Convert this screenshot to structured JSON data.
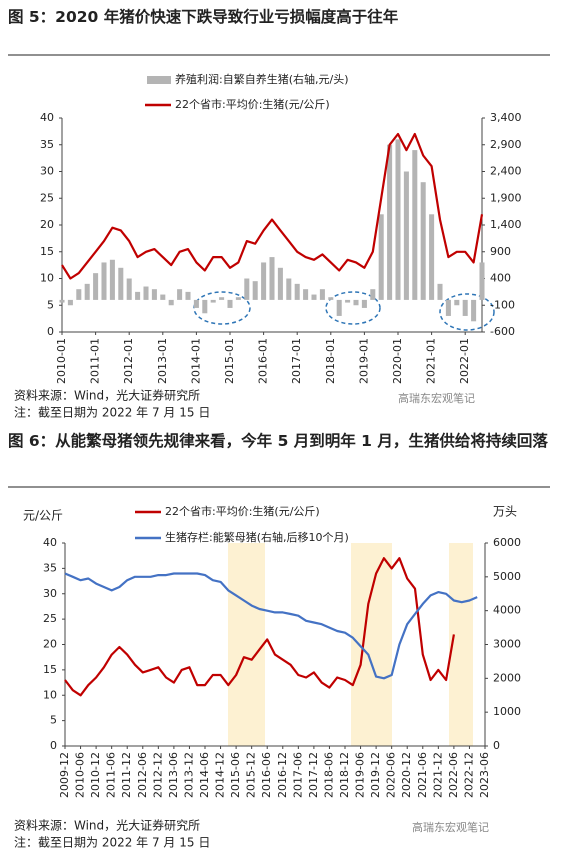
{
  "chart_data": [
    {
      "type": "combo",
      "title": "图 5：2020 年猪价快速下跌导致行业亏损幅度高于往年",
      "x": [
        "2010-01",
        "2010-04",
        "2010-07",
        "2010-10",
        "2011-01",
        "2011-04",
        "2011-07",
        "2011-10",
        "2012-01",
        "2012-04",
        "2012-07",
        "2012-10",
        "2013-01",
        "2013-04",
        "2013-07",
        "2013-10",
        "2014-01",
        "2014-04",
        "2014-07",
        "2014-10",
        "2015-01",
        "2015-04",
        "2015-07",
        "2015-10",
        "2016-01",
        "2016-04",
        "2016-07",
        "2016-10",
        "2017-01",
        "2017-04",
        "2017-07",
        "2017-10",
        "2018-01",
        "2018-04",
        "2018-07",
        "2018-10",
        "2019-01",
        "2019-04",
        "2019-07",
        "2019-10",
        "2020-01",
        "2020-04",
        "2020-07",
        "2020-10",
        "2021-01",
        "2021-04",
        "2021-07",
        "2021-10",
        "2022-01",
        "2022-04",
        "2022-07"
      ],
      "xlim": [
        "2010-01",
        "2022-07"
      ],
      "xticks": [
        "2010-01",
        "2011-01",
        "2012-01",
        "2013-01",
        "2014-01",
        "2015-01",
        "2016-01",
        "2017-01",
        "2018-01",
        "2019-01",
        "2020-01",
        "2021-01",
        "2022-01"
      ],
      "series": [
        {
          "name": "养殖利润:自繁自养生猪(右轴,元/头)",
          "type": "bar",
          "axis": "y2",
          "color": "#b4b4b4",
          "values": [
            -50,
            -100,
            200,
            300,
            500,
            700,
            750,
            600,
            400,
            150,
            250,
            200,
            100,
            -100,
            200,
            150,
            -150,
            -250,
            -50,
            50,
            -150,
            50,
            400,
            350,
            700,
            800,
            600,
            400,
            300,
            200,
            100,
            200,
            50,
            -300,
            -50,
            -100,
            -150,
            200,
            1600,
            2900,
            3000,
            2400,
            2800,
            2200,
            1600,
            300,
            -300,
            -100,
            -300,
            -400,
            700
          ]
        },
        {
          "name": "22个省市:平均价:生猪(元/公斤)",
          "type": "line",
          "color": "#c00000",
          "values": [
            12.5,
            10,
            11,
            13,
            15,
            17,
            19.5,
            19,
            17,
            14,
            15,
            15.5,
            14,
            12.5,
            15,
            15.5,
            13,
            11.5,
            14,
            14,
            12,
            13,
            17,
            16.5,
            19,
            21,
            19,
            17,
            15,
            14,
            13.5,
            14.5,
            13,
            11.5,
            13.5,
            13,
            12,
            15,
            25,
            35,
            37,
            34,
            37,
            33,
            31,
            21,
            14,
            15,
            15,
            13,
            22
          ]
        }
      ],
      "ylim": [
        0,
        40
      ],
      "yticks": [
        0,
        5,
        10,
        15,
        20,
        25,
        30,
        35,
        40
      ],
      "y2lim": [
        -600,
        3400
      ],
      "y2ticks": [
        -600,
        -100,
        400,
        900,
        {
          "value": 1400,
          "label": "1,400"
        },
        {
          "value": 1900,
          "label": "1,900"
        },
        {
          "value": 2400,
          "label": "2,400"
        },
        {
          "value": 2900,
          "label": "2,900"
        },
        {
          "value": 3400,
          "label": "3,400"
        }
      ],
      "source": "资料来源：Wind，光大证券研究所",
      "note": "注：截至日期为 2022 年 7 月 15 日"
    },
    {
      "type": "line",
      "title": "图 6：从能繁母猪领先规律来看，今年 5 月到明年 1 月，生猪供给将持续回落",
      "ylabel": "元/公斤",
      "y2label": "万头",
      "x": [
        "2009-12",
        "2010-03",
        "2010-06",
        "2010-09",
        "2010-12",
        "2011-03",
        "2011-06",
        "2011-09",
        "2011-12",
        "2012-03",
        "2012-06",
        "2012-09",
        "2012-12",
        "2013-03",
        "2013-06",
        "2013-09",
        "2013-12",
        "2014-03",
        "2014-06",
        "2014-09",
        "2014-12",
        "2015-03",
        "2015-06",
        "2015-09",
        "2015-12",
        "2016-03",
        "2016-06",
        "2016-09",
        "2016-12",
        "2017-03",
        "2017-06",
        "2017-09",
        "2017-12",
        "2018-03",
        "2018-06",
        "2018-09",
        "2018-12",
        "2019-03",
        "2019-06",
        "2019-09",
        "2019-12",
        "2020-03",
        "2020-06",
        "2020-09",
        "2020-12",
        "2021-03",
        "2021-06",
        "2021-09",
        "2021-12",
        "2022-03",
        "2022-06",
        "2022-09",
        "2022-12",
        "2023-03"
      ],
      "xlim": [
        "2009-12",
        "2023-06"
      ],
      "xticks": [
        "2009-12",
        "2010-06",
        "2010-12",
        "2011-06",
        "2011-12",
        "2012-06",
        "2012-12",
        "2013-06",
        "2013-12",
        "2014-06",
        "2014-12",
        "2015-06",
        "2015-12",
        "2016-06",
        "2016-12",
        "2017-06",
        "2017-12",
        "2018-06",
        "2018-12",
        "2019-06",
        "2019-12",
        "2020-06",
        "2020-12",
        "2021-06",
        "2021-12",
        "2022-06",
        "2022-12",
        "2023-06"
      ],
      "series": [
        {
          "name": "22个省市:平均价:生猪(元/公斤)",
          "color": "#c00000",
          "values": [
            13,
            11,
            10,
            12,
            13.5,
            15.5,
            18,
            19.5,
            18,
            16,
            14.5,
            15,
            15.5,
            13.5,
            12.5,
            15,
            15.5,
            12,
            12,
            14,
            14,
            12,
            14,
            17.5,
            17,
            19,
            21,
            18,
            17,
            16,
            14,
            13.5,
            14.5,
            12.5,
            11.5,
            13.5,
            13,
            12,
            16,
            28,
            34,
            37,
            35,
            37,
            33,
            31,
            18,
            13,
            15,
            13,
            22,
            null,
            null,
            null
          ]
        },
        {
          "name": "生猪存栏:能繁母猪(右轴,后移10个月)",
          "color": "#4472c4",
          "axis": "y2",
          "values": [
            5100,
            5000,
            4900,
            4950,
            4800,
            4700,
            4600,
            4700,
            4900,
            5000,
            5000,
            5000,
            5050,
            5050,
            5100,
            5100,
            5100,
            5100,
            5050,
            4900,
            4850,
            4600,
            4450,
            4300,
            4150,
            4050,
            4000,
            3950,
            3950,
            3900,
            3850,
            3700,
            3650,
            3600,
            3500,
            3400,
            3350,
            3200,
            2950,
            2700,
            2050,
            2000,
            2100,
            3000,
            3600,
            3900,
            4200,
            4450,
            4550,
            4500,
            4300,
            4250,
            4300,
            4400
          ]
        }
      ],
      "ylim": [
        0,
        40
      ],
      "yticks": [
        0,
        5,
        10,
        15,
        20,
        25,
        30,
        35,
        40
      ],
      "y2lim": [
        0,
        6000
      ],
      "y2ticks": [
        0,
        1000,
        2000,
        3000,
        4000,
        5000,
        6000
      ],
      "source": "资料来源：Wind，光大证券研究所",
      "note": "注：截至日期为 2022 年 7 月 15 日"
    }
  ],
  "watermark": "高瑞东宏观笔记"
}
